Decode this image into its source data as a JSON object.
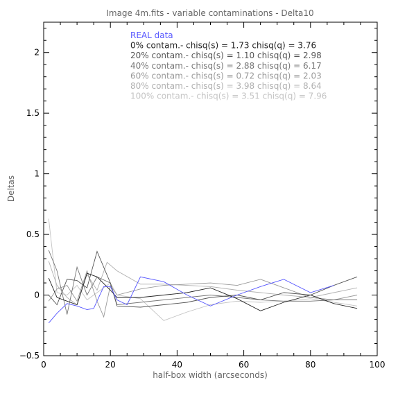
{
  "chart_data": {
    "type": "line",
    "title": "Image 4m.fits - variable contaminations - Delta10",
    "xlabel": "half-box width (arcseconds)",
    "ylabel": "Deltas",
    "xlim": [
      0,
      100
    ],
    "ylim": [
      -0.5,
      2.25
    ],
    "xticks": [
      0,
      20,
      40,
      60,
      80,
      100
    ],
    "yticks": [
      -0.5,
      0,
      0.5,
      1,
      1.5,
      2
    ],
    "xtick_labels": [
      "0",
      "20",
      "40",
      "60",
      "80",
      "100"
    ],
    "ytick_labels": [
      "−0.5",
      "0",
      "0.5",
      "1",
      "1.5",
      "2"
    ],
    "grid": false,
    "legend_position": "top",
    "series": [
      {
        "name": "REAL data",
        "color": "#5555ff",
        "x": [
          1.5,
          4,
          7,
          10,
          13,
          15,
          18,
          20,
          22,
          25,
          29,
          36,
          43,
          50,
          58,
          65,
          72,
          80,
          87
        ],
        "y": [
          -0.23,
          -0.15,
          -0.07,
          -0.09,
          -0.12,
          -0.11,
          0.07,
          0.07,
          -0.04,
          -0.08,
          0.15,
          0.11,
          0.0,
          -0.09,
          0.0,
          0.07,
          0.13,
          0.02,
          0.08
        ]
      },
      {
        "name": "0% contam.- chisq(s) = 1.73 chisq(q) = 3.76",
        "color": "#222222",
        "x": [
          1.5,
          4,
          7,
          10,
          13,
          16,
          20,
          22,
          29,
          36,
          43,
          50,
          58,
          65,
          72,
          80,
          87,
          94
        ],
        "y": [
          0.14,
          -0.02,
          -0.05,
          -0.08,
          0.18,
          0.15,
          0.04,
          -0.02,
          -0.02,
          0.0,
          0.02,
          0.06,
          -0.03,
          -0.13,
          -0.06,
          0.0,
          -0.07,
          -0.11
        ]
      },
      {
        "name": "20% contam.- chisq(s) = 1.10 chisq(q) = 2.98",
        "color": "#555555",
        "x": [
          1.5,
          4,
          7,
          10,
          13,
          16,
          20,
          22,
          29,
          36,
          43,
          50,
          58,
          65,
          72,
          80,
          87,
          94
        ],
        "y": [
          0.0,
          -0.08,
          0.13,
          0.12,
          0.06,
          0.36,
          0.1,
          -0.09,
          -0.1,
          -0.08,
          -0.06,
          -0.02,
          0.0,
          -0.04,
          0.02,
          0.0,
          0.08,
          0.15
        ]
      },
      {
        "name": "40% contam.- chisq(s) = 2.88 chisq(q) = 6.17",
        "color": "#777777",
        "x": [
          1.5,
          4,
          7,
          10,
          13,
          16,
          20,
          22,
          29,
          36,
          43,
          50,
          58,
          65,
          72,
          80,
          87,
          94
        ],
        "y": [
          0.37,
          0.2,
          -0.16,
          0.23,
          0.0,
          0.15,
          0.1,
          -0.08,
          -0.06,
          -0.04,
          -0.02,
          0.0,
          -0.02,
          -0.04,
          -0.05,
          -0.05,
          -0.04,
          -0.04
        ]
      },
      {
        "name": "60% contam.- chisq(s) = 0.72 chisq(q) = 2.03",
        "color": "#999999",
        "x": [
          1.5,
          4,
          7,
          10,
          13,
          16,
          18,
          20,
          22,
          29,
          36,
          43,
          50,
          58,
          65,
          72,
          80,
          87,
          94
        ],
        "y": [
          -0.05,
          0.05,
          0.08,
          -0.05,
          0.2,
          -0.05,
          -0.18,
          0.08,
          0.0,
          0.05,
          0.08,
          0.09,
          0.1,
          0.08,
          0.13,
          0.06,
          -0.02,
          -0.04,
          0.0
        ]
      },
      {
        "name": "80% contam.- chisq(s) = 3.98 chisq(q) = 8.64",
        "color": "#b0b0b0",
        "x": [
          1.5,
          4,
          7,
          10,
          13,
          16,
          19,
          22,
          29,
          36,
          43,
          50,
          58,
          65,
          72,
          80,
          87,
          94
        ],
        "y": [
          0.28,
          0.08,
          -0.02,
          -0.08,
          0.17,
          0.04,
          0.27,
          0.2,
          0.09,
          0.09,
          0.08,
          0.07,
          0.04,
          0.02,
          0.0,
          -0.02,
          0.02,
          0.06
        ]
      },
      {
        "name": "100% contam.- chisq(s) = 3.51 chisq(q) = 7.96",
        "color": "#c4c4c4",
        "x": [
          1.5,
          4,
          7,
          10,
          13,
          16,
          20,
          22,
          29,
          36,
          43,
          50,
          58,
          65,
          72,
          80,
          87,
          94
        ],
        "y": [
          0.63,
          0.02,
          0.0,
          0.08,
          -0.04,
          0.02,
          0.1,
          0.0,
          -0.03,
          -0.21,
          -0.14,
          -0.08,
          -0.05,
          -0.06,
          -0.05,
          -0.03,
          -0.06,
          -0.09
        ]
      }
    ]
  }
}
